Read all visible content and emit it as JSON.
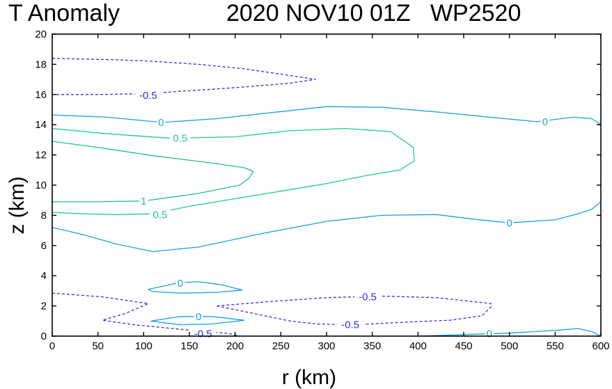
{
  "chart_data": {
    "type": "contour",
    "title_left": "T Anomaly",
    "title_right": "2020 NOV10 01Z   WP2520",
    "xlabel": "r (km)",
    "ylabel": "z (km)",
    "xlim": [
      0,
      600
    ],
    "ylim": [
      0,
      20
    ],
    "xticks": [
      0,
      50,
      100,
      150,
      200,
      250,
      300,
      350,
      400,
      450,
      500,
      550,
      600
    ],
    "yticks": [
      0,
      2,
      4,
      6,
      8,
      10,
      12,
      14,
      16,
      18,
      20
    ],
    "colors": {
      "neg": "#3030e0",
      "zero": "#1aa0e6",
      "pos_half": "#20c8a0",
      "pos_one": "#20c090",
      "axis": "#000000"
    },
    "contours": [
      {
        "name": "neg-top",
        "level": -0.5,
        "style": "dashed",
        "color_key": "neg",
        "points": [
          [
            0,
            18.4
          ],
          [
            30,
            18.35
          ],
          [
            70,
            18.3
          ],
          [
            110,
            18.2
          ],
          [
            160,
            18.0
          ],
          [
            210,
            17.7
          ],
          [
            250,
            17.35
          ],
          [
            288,
            17.0
          ],
          [
            260,
            16.75
          ],
          [
            200,
            16.45
          ],
          [
            150,
            16.25
          ],
          [
            100,
            16.05
          ],
          [
            50,
            16.0
          ],
          [
            0,
            16.0
          ]
        ]
      },
      {
        "name": "zero-upper",
        "level": 0,
        "style": "solid",
        "color_key": "zero",
        "points": [
          [
            0,
            14.65
          ],
          [
            60,
            14.5
          ],
          [
            120,
            14.15
          ],
          [
            180,
            14.4
          ],
          [
            240,
            14.8
          ],
          [
            300,
            15.2
          ],
          [
            360,
            15.15
          ],
          [
            420,
            14.85
          ],
          [
            470,
            14.55
          ],
          [
            530,
            14.2
          ],
          [
            570,
            14.5
          ],
          [
            590,
            14.4
          ],
          [
            600,
            14.0
          ]
        ]
      },
      {
        "name": "half-upper",
        "level": 0.5,
        "style": "solid",
        "color_key": "pos_half",
        "points": [
          [
            0,
            13.75
          ],
          [
            60,
            13.4
          ],
          [
            130,
            13.1
          ],
          [
            200,
            13.2
          ],
          [
            260,
            13.6
          ],
          [
            320,
            13.75
          ],
          [
            370,
            13.55
          ],
          [
            395,
            12.5
          ],
          [
            396,
            11.6
          ],
          [
            380,
            11.0
          ],
          [
            345,
            10.65
          ],
          [
            300,
            10.1
          ],
          [
            250,
            9.6
          ],
          [
            200,
            9.1
          ],
          [
            150,
            8.6
          ],
          [
            110,
            8.1
          ],
          [
            70,
            8.05
          ],
          [
            30,
            8.1
          ],
          [
            0,
            8.2
          ]
        ]
      },
      {
        "name": "one-contour",
        "level": 1,
        "style": "solid",
        "color_key": "pos_one",
        "points": [
          [
            0,
            12.9
          ],
          [
            50,
            12.5
          ],
          [
            110,
            11.95
          ],
          [
            170,
            11.5
          ],
          [
            210,
            11.15
          ],
          [
            220,
            10.9
          ],
          [
            215,
            10.45
          ],
          [
            205,
            10.0
          ],
          [
            160,
            9.45
          ],
          [
            100,
            8.95
          ],
          [
            50,
            8.9
          ],
          [
            0,
            8.9
          ]
        ]
      },
      {
        "name": "zero-middle",
        "level": 0,
        "style": "solid",
        "color_key": "zero",
        "points": [
          [
            0,
            7.2
          ],
          [
            35,
            6.7
          ],
          [
            70,
            6.1
          ],
          [
            110,
            5.6
          ],
          [
            160,
            5.9
          ],
          [
            230,
            6.8
          ],
          [
            300,
            7.6
          ],
          [
            360,
            8.0
          ],
          [
            420,
            8.05
          ],
          [
            460,
            7.75
          ],
          [
            500,
            7.5
          ],
          [
            550,
            7.7
          ],
          [
            575,
            8.1
          ],
          [
            590,
            8.4
          ],
          [
            600,
            8.9
          ]
        ]
      },
      {
        "name": "zero-lens-high",
        "level": 0,
        "style": "solid",
        "color_key": "zero",
        "points": [
          [
            105,
            3.1
          ],
          [
            140,
            3.55
          ],
          [
            160,
            3.6
          ],
          [
            185,
            3.4
          ],
          [
            208,
            3.05
          ],
          [
            180,
            2.9
          ],
          [
            140,
            2.85
          ],
          [
            110,
            2.95
          ],
          [
            105,
            3.1
          ]
        ]
      },
      {
        "name": "zero-lens-low",
        "level": 0,
        "style": "solid",
        "color_key": "zero",
        "points": [
          [
            108,
            1.0
          ],
          [
            140,
            1.3
          ],
          [
            175,
            1.3
          ],
          [
            210,
            1.05
          ],
          [
            175,
            0.8
          ],
          [
            140,
            0.75
          ],
          [
            108,
            1.0
          ]
        ]
      },
      {
        "name": "neg-bottom-left",
        "level": -0.5,
        "style": "dashed",
        "color_key": "neg",
        "points": [
          [
            0,
            2.85
          ],
          [
            55,
            2.6
          ],
          [
            105,
            2.15
          ],
          [
            80,
            1.5
          ],
          [
            55,
            1.05
          ],
          [
            90,
            0.75
          ],
          [
            140,
            0.45
          ],
          [
            170,
            0.3
          ],
          [
            195,
            0.15
          ],
          [
            205,
            0.0
          ]
        ]
      },
      {
        "name": "neg-bottom-right",
        "level": -0.5,
        "style": "dashed",
        "color_key": "neg",
        "points": [
          [
            180,
            2.0
          ],
          [
            240,
            2.3
          ],
          [
            300,
            2.55
          ],
          [
            360,
            2.65
          ],
          [
            420,
            2.55
          ],
          [
            480,
            2.15
          ],
          [
            480,
            1.95
          ],
          [
            470,
            1.35
          ],
          [
            435,
            1.05
          ],
          [
            395,
            0.95
          ],
          [
            330,
            0.75
          ],
          [
            290,
            0.8
          ],
          [
            260,
            1.0
          ],
          [
            220,
            1.5
          ],
          [
            180,
            2.0
          ]
        ]
      },
      {
        "name": "zero-bottom",
        "level": 0,
        "style": "solid",
        "color_key": "zero",
        "points": [
          [
            400,
            0.0
          ],
          [
            450,
            0.1
          ],
          [
            500,
            0.2
          ],
          [
            555,
            0.4
          ],
          [
            575,
            0.5
          ],
          [
            590,
            0.3
          ],
          [
            600,
            0.0
          ]
        ]
      }
    ],
    "labels": [
      {
        "text": "-0.5",
        "r": 105,
        "z": 15.95,
        "color_key": "neg"
      },
      {
        "text": "0",
        "r": 119,
        "z": 14.15,
        "color_key": "zero"
      },
      {
        "text": "0",
        "r": 539,
        "z": 14.2,
        "color_key": "zero"
      },
      {
        "text": "0.5",
        "r": 140,
        "z": 13.1,
        "color_key": "pos_half"
      },
      {
        "text": "1",
        "r": 100,
        "z": 8.95,
        "color_key": "pos_one"
      },
      {
        "text": "0.5",
        "r": 118,
        "z": 8.05,
        "color_key": "pos_half"
      },
      {
        "text": "0",
        "r": 500,
        "z": 7.5,
        "color_key": "zero"
      },
      {
        "text": "0",
        "r": 140,
        "z": 3.5,
        "color_key": "zero"
      },
      {
        "text": "-0.5",
        "r": 345,
        "z": 2.6,
        "color_key": "neg"
      },
      {
        "text": "0",
        "r": 160,
        "z": 1.3,
        "color_key": "zero"
      },
      {
        "text": "-0.5",
        "r": 326,
        "z": 0.75,
        "color_key": "neg"
      },
      {
        "text": "-0.5",
        "r": 165,
        "z": 0.15,
        "color_key": "neg"
      },
      {
        "text": "0",
        "r": 478,
        "z": 0.15,
        "color_key": "zero"
      }
    ]
  }
}
